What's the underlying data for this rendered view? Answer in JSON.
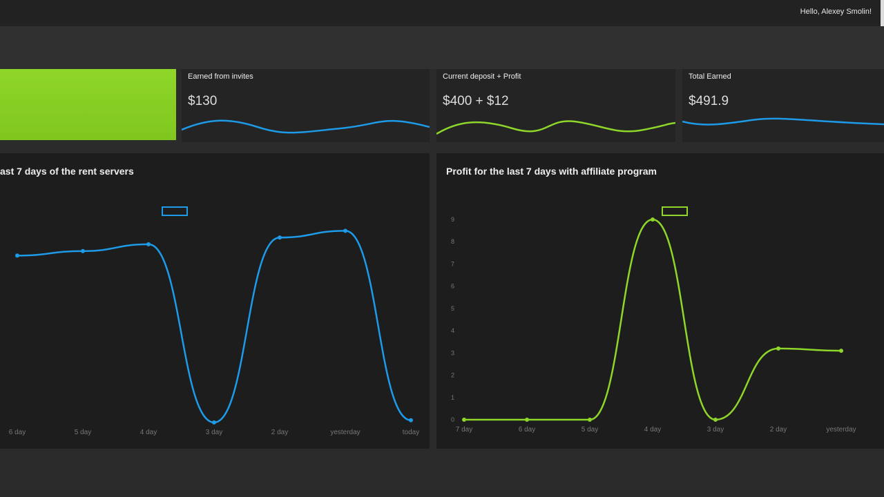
{
  "header": {
    "greeting": "Hello, Alexey Smolin!"
  },
  "cards": [
    {
      "label": "Earned from invites",
      "value": "$130",
      "color": "#1e9be8"
    },
    {
      "label": "Current deposit + Profit",
      "value": "$400 + $12",
      "color": "#8fd62a"
    },
    {
      "label": "Total Earned",
      "value": "$491.9",
      "color": "#1e9be8"
    }
  ],
  "chart_data": [
    {
      "type": "line",
      "title": "ast 7 days of the rent servers",
      "color": "#1e9be8",
      "categories": [
        "6 day",
        "5 day",
        "4 day",
        "3 day",
        "2 day",
        "yesterday",
        "today"
      ],
      "values": [
        7.4,
        7.6,
        7.9,
        0,
        8.2,
        8.5,
        0.1
      ],
      "ylim": [
        0,
        9
      ]
    },
    {
      "type": "line",
      "title": "Profit for the last 7 days with affiliate program",
      "color": "#8fd62a",
      "categories": [
        "7 day",
        "6 day",
        "5 day",
        "4 day",
        "3 day",
        "2 day",
        "yesterday"
      ],
      "values": [
        0,
        0,
        0,
        9,
        0,
        3.2,
        3.1
      ],
      "yticks": [
        "0",
        "1",
        "2",
        "3",
        "4",
        "5",
        "6",
        "7",
        "8",
        "9"
      ],
      "ylim": [
        0,
        9
      ]
    }
  ]
}
